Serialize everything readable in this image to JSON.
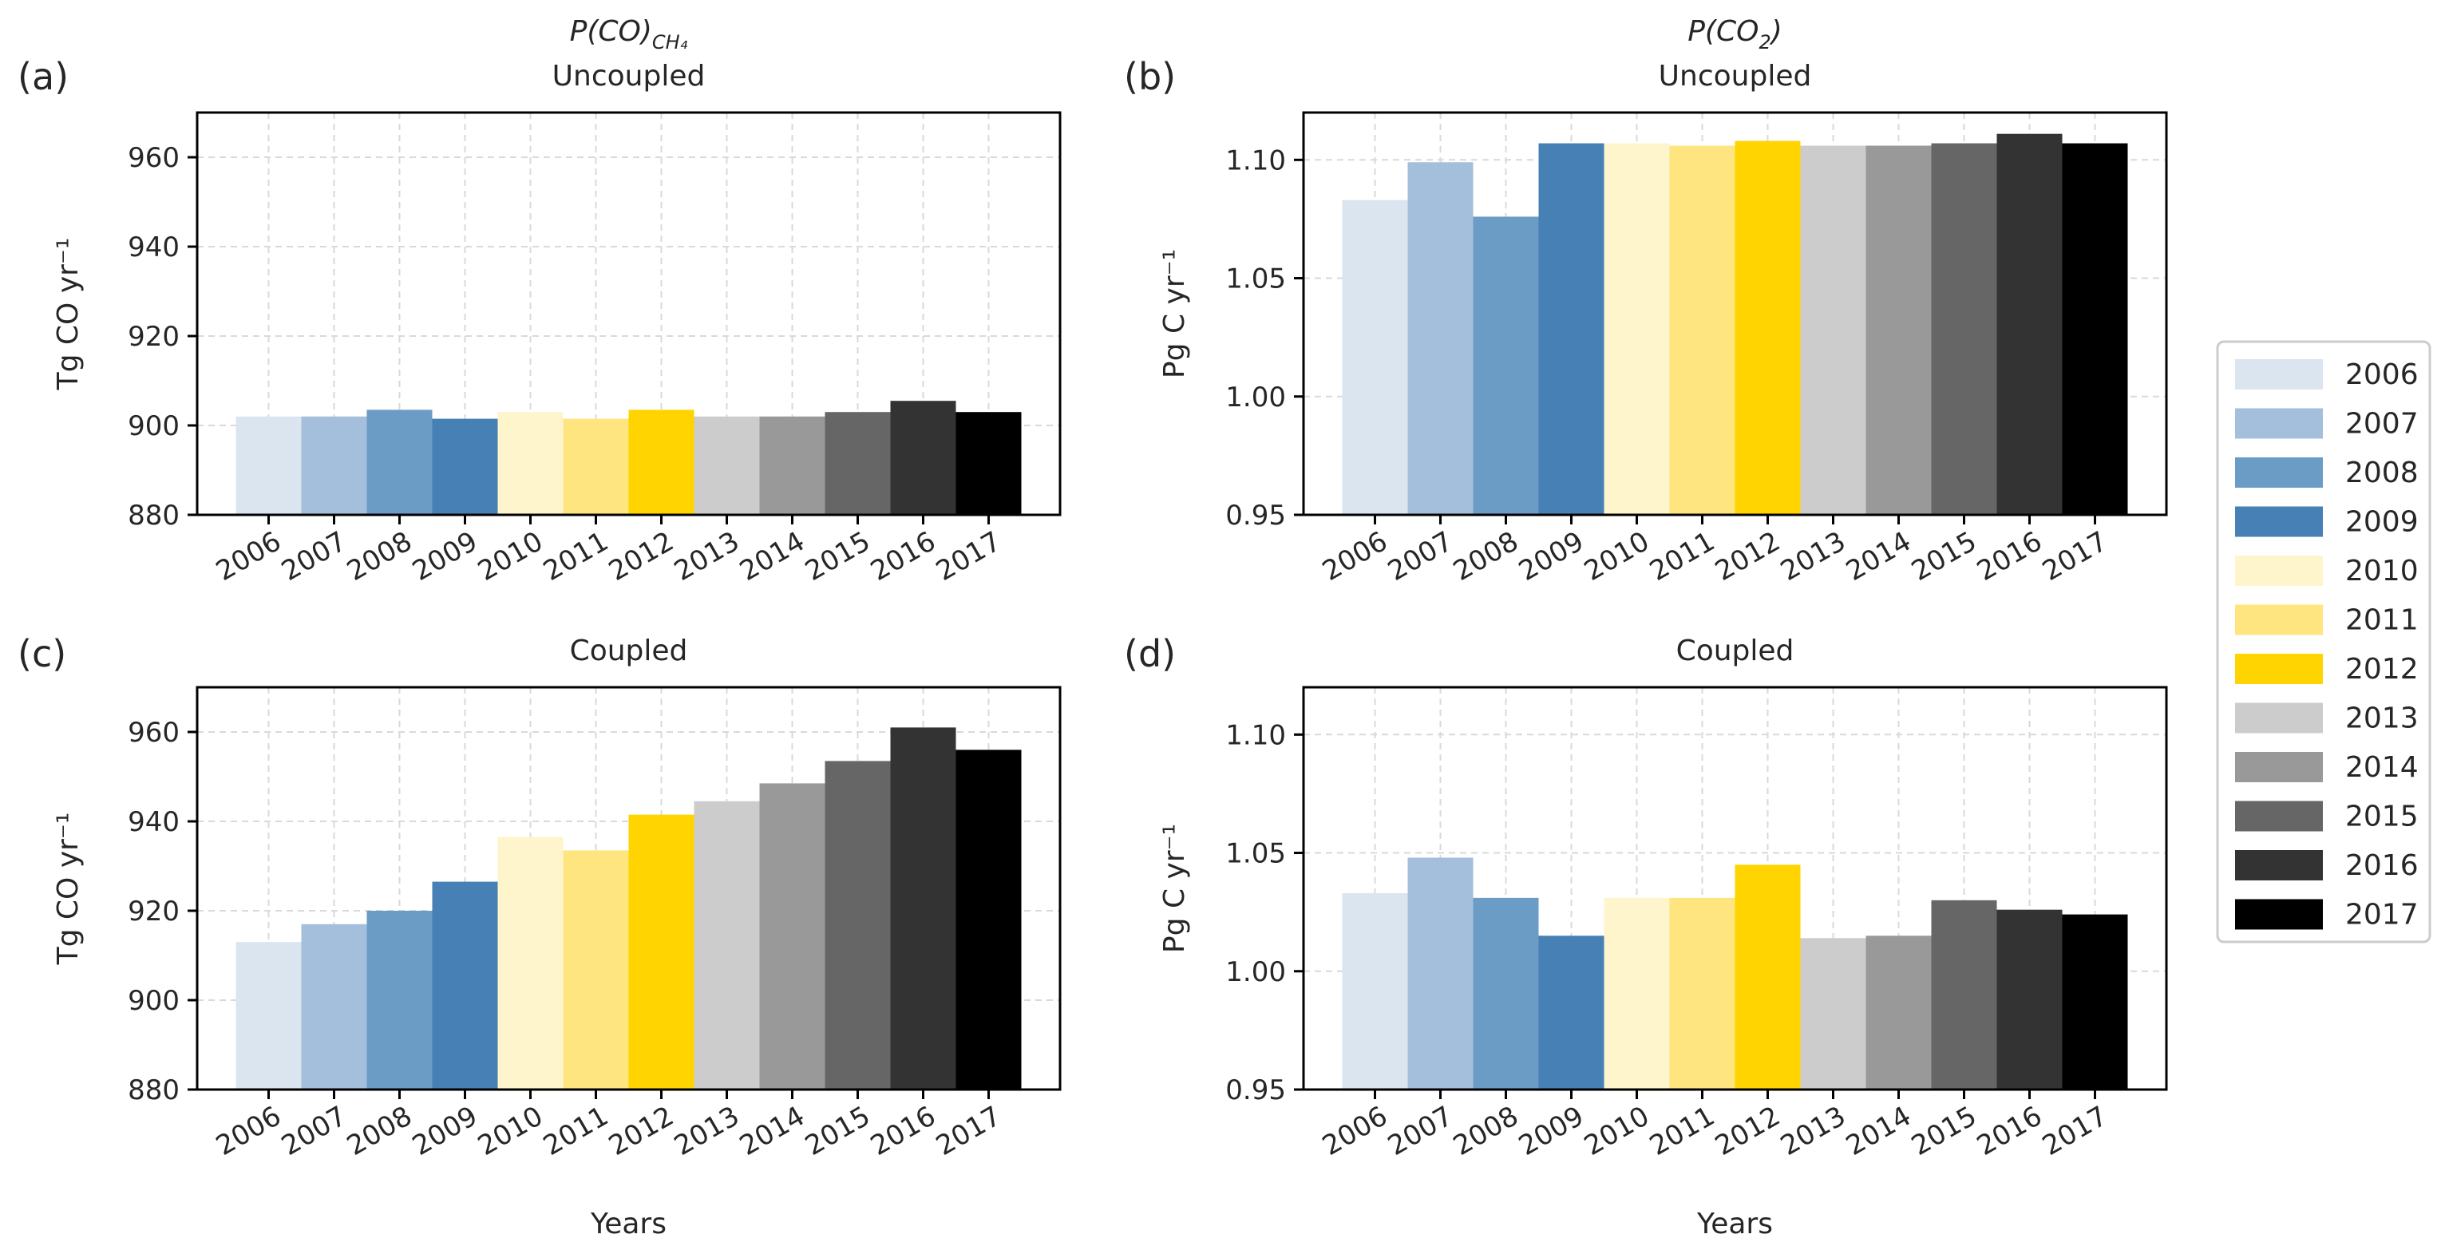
{
  "years": [
    "2006",
    "2007",
    "2008",
    "2009",
    "2010",
    "2011",
    "2012",
    "2013",
    "2014",
    "2015",
    "2016",
    "2017"
  ],
  "colors": [
    "#dbe5ef",
    "#a3bfdb",
    "#6a9cc6",
    "#4680b4",
    "#fff5cc",
    "#ffe57f",
    "#ffd400",
    "#cccccc",
    "#999999",
    "#666666",
    "#333333",
    "#000000"
  ],
  "legend": {
    "entries": [
      "2006",
      "2007",
      "2008",
      "2009",
      "2010",
      "2011",
      "2012",
      "2013",
      "2014",
      "2015",
      "2016",
      "2017"
    ]
  },
  "chart_data": [
    {
      "type": "bar",
      "panel": "(a)",
      "supertitle": "P(CO)",
      "supertitle_sub": "CH₄",
      "title": "Uncoupled",
      "xlabel": "",
      "ylabel": "Tg CO yr⁻¹",
      "ylim": [
        880,
        970
      ],
      "yticks": [
        880,
        900,
        920,
        940,
        960
      ],
      "ytick_labels": [
        "880",
        "900",
        "920",
        "940",
        "960"
      ],
      "categories": [
        "2006",
        "2007",
        "2008",
        "2009",
        "2010",
        "2011",
        "2012",
        "2013",
        "2014",
        "2015",
        "2016",
        "2017"
      ],
      "values": [
        902,
        902,
        903.5,
        901.5,
        903,
        901.5,
        903.5,
        902,
        902,
        903,
        905.5,
        903
      ]
    },
    {
      "type": "bar",
      "panel": "(b)",
      "supertitle": "P(CO",
      "supertitle_sub": "2",
      "supertitle_end": ")",
      "title": "Uncoupled",
      "xlabel": "",
      "ylabel": "Pg C yr⁻¹",
      "ylim": [
        0.95,
        1.12
      ],
      "yticks": [
        0.95,
        1.0,
        1.05,
        1.1
      ],
      "ytick_labels": [
        "0.95",
        "1.00",
        "1.05",
        "1.10"
      ],
      "categories": [
        "2006",
        "2007",
        "2008",
        "2009",
        "2010",
        "2011",
        "2012",
        "2013",
        "2014",
        "2015",
        "2016",
        "2017"
      ],
      "values": [
        1.083,
        1.099,
        1.076,
        1.107,
        1.107,
        1.106,
        1.108,
        1.106,
        1.106,
        1.107,
        1.111,
        1.107
      ]
    },
    {
      "type": "bar",
      "panel": "(c)",
      "title": "Coupled",
      "xlabel": "Years",
      "ylabel": "Tg CO yr⁻¹",
      "ylim": [
        880,
        970
      ],
      "yticks": [
        880,
        900,
        920,
        940,
        960
      ],
      "ytick_labels": [
        "880",
        "900",
        "920",
        "940",
        "960"
      ],
      "categories": [
        "2006",
        "2007",
        "2008",
        "2009",
        "2010",
        "2011",
        "2012",
        "2013",
        "2014",
        "2015",
        "2016",
        "2017"
      ],
      "values": [
        913,
        917,
        920,
        926.5,
        936.5,
        933.5,
        941.5,
        944.5,
        948.5,
        953.5,
        961,
        956
      ]
    },
    {
      "type": "bar",
      "panel": "(d)",
      "title": "Coupled",
      "xlabel": "Years",
      "ylabel": "Pg C yr⁻¹",
      "ylim": [
        0.95,
        1.12
      ],
      "yticks": [
        0.95,
        1.0,
        1.05,
        1.1
      ],
      "ytick_labels": [
        "0.95",
        "1.00",
        "1.05",
        "1.10"
      ],
      "categories": [
        "2006",
        "2007",
        "2008",
        "2009",
        "2010",
        "2011",
        "2012",
        "2013",
        "2014",
        "2015",
        "2016",
        "2017"
      ],
      "values": [
        1.033,
        1.048,
        1.031,
        1.015,
        1.031,
        1.031,
        1.045,
        1.014,
        1.015,
        1.03,
        1.026,
        1.024
      ]
    }
  ]
}
